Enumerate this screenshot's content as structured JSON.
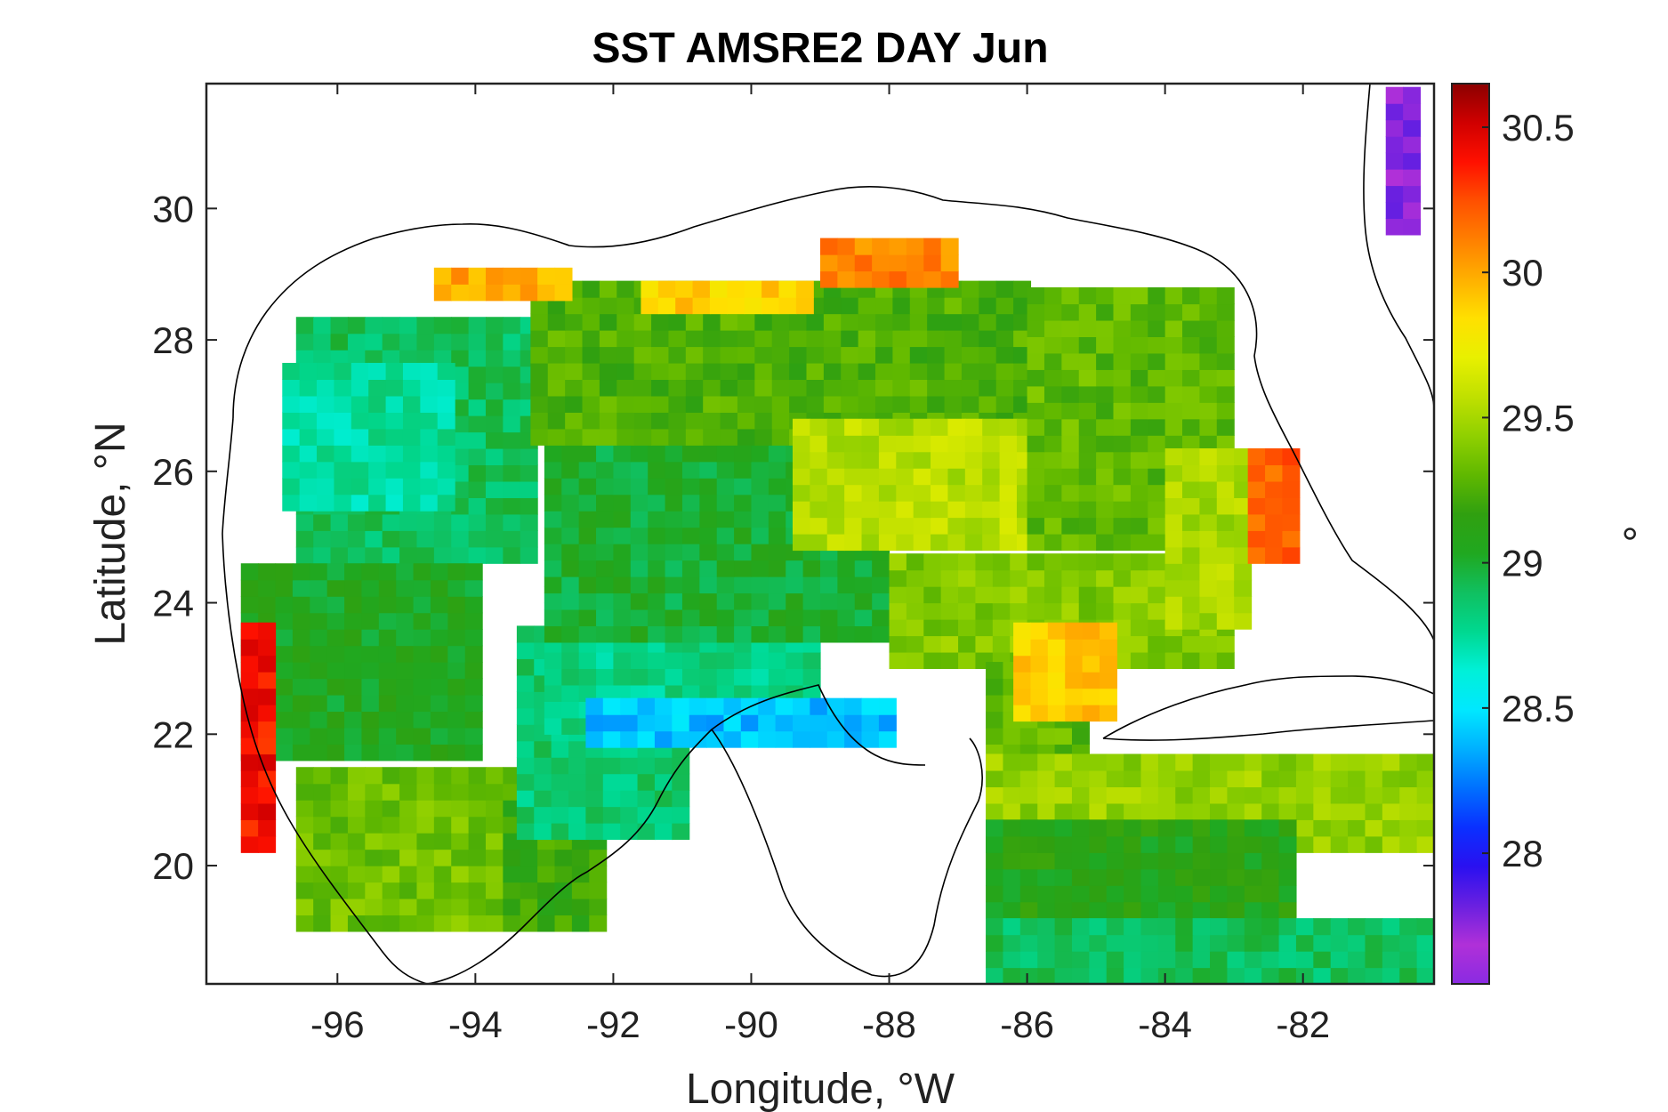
{
  "chart_data": {
    "type": "heatmap",
    "title": "SST AMSRE2 DAY Jun",
    "xlabel": "Longitude, °W",
    "ylabel": "Latitude, °N",
    "colorbar_label": "°",
    "xlim": [
      -97.9,
      -80.1
    ],
    "ylim": [
      18.2,
      31.9
    ],
    "xticks": [
      -96,
      -94,
      -92,
      -90,
      -88,
      -86,
      -84,
      -82
    ],
    "xtick_labels": [
      "-96",
      "-94",
      "-92",
      "-90",
      "-88",
      "-86",
      "-84",
      "-82"
    ],
    "yticks": [
      20,
      22,
      24,
      26,
      28,
      30
    ],
    "ytick_labels": [
      "20",
      "22",
      "24",
      "26",
      "28",
      "30"
    ],
    "clim": [
      27.55,
      30.65
    ],
    "cticks": [
      28,
      28.5,
      29,
      29.5,
      30,
      30.5
    ],
    "ctick_labels": [
      "28",
      "28.5",
      "29",
      "29.5",
      "30",
      "30.5"
    ],
    "colormap": [
      "#8a2be2",
      "#b030d8",
      "#6a20e0",
      "#2a10f0",
      "#0a30ff",
      "#0070ff",
      "#00b0ff",
      "#00e8ff",
      "#00f0d8",
      "#00d890",
      "#10c060",
      "#20a820",
      "#30a010",
      "#60b800",
      "#90d000",
      "#c0e000",
      "#e8f000",
      "#ffe000",
      "#ffb000",
      "#ff8000",
      "#ff5000",
      "#ff1000",
      "#d00000",
      "#8b0000"
    ],
    "grid_resolution_deg": 0.25,
    "sea_surface_temperature_zones": [
      {
        "lon": [
          -96.6,
          -93.0
        ],
        "lat": [
          24.6,
          28.4
        ],
        "value": 28.9
      },
      {
        "lon": [
          -96.8,
          -94.2
        ],
        "lat": [
          25.4,
          27.6
        ],
        "value": 28.75
      },
      {
        "lon": [
          -97.4,
          -94.0
        ],
        "lat": [
          21.6,
          24.6
        ],
        "value": 29.05
      },
      {
        "lon": [
          -96.6,
          -93.6
        ],
        "lat": [
          19.0,
          21.6
        ],
        "value": 29.35
      },
      {
        "lon": [
          -93.6,
          -92.0
        ],
        "lat": [
          19.0,
          21.4
        ],
        "value": 29.2
      },
      {
        "lon": [
          -93.4,
          -91.0
        ],
        "lat": [
          20.4,
          23.6
        ],
        "value": 28.85
      },
      {
        "lon": [
          -93.0,
          -89.0
        ],
        "lat": [
          22.0,
          24.6
        ],
        "value": 28.8
      },
      {
        "lon": [
          -92.4,
          -88.0
        ],
        "lat": [
          21.8,
          22.6
        ],
        "value": 28.4
      },
      {
        "lon": [
          -93.0,
          -88.0
        ],
        "lat": [
          23.4,
          26.4
        ],
        "value": 29.0
      },
      {
        "lon": [
          -93.2,
          -86.0
        ],
        "lat": [
          26.4,
          29.0
        ],
        "value": 29.25
      },
      {
        "lon": [
          -89.4,
          -85.8
        ],
        "lat": [
          24.8,
          26.8
        ],
        "value": 29.55
      },
      {
        "lon": [
          -88.0,
          -83.0
        ],
        "lat": [
          23.0,
          24.8
        ],
        "value": 29.4
      },
      {
        "lon": [
          -86.0,
          -83.0
        ],
        "lat": [
          24.8,
          28.8
        ],
        "value": 29.3
      },
      {
        "lon": [
          -84.0,
          -82.8
        ],
        "lat": [
          23.6,
          26.4
        ],
        "value": 29.5
      },
      {
        "lon": [
          -86.6,
          -85.0
        ],
        "lat": [
          21.6,
          23.2
        ],
        "value": 29.3
      },
      {
        "lon": [
          -86.6,
          -80.2
        ],
        "lat": [
          20.2,
          21.6
        ],
        "value": 29.45
      },
      {
        "lon": [
          -86.6,
          -82.0
        ],
        "lat": [
          19.2,
          20.6
        ],
        "value": 29.1
      },
      {
        "lon": [
          -86.6,
          -80.2
        ],
        "lat": [
          18.2,
          19.2
        ],
        "value": 28.9
      },
      {
        "lon": [
          -97.4,
          -96.8
        ],
        "lat": [
          20.2,
          23.6
        ],
        "value": 30.4
      },
      {
        "lon": [
          -94.6,
          -92.6
        ],
        "lat": [
          28.6,
          29.2
        ],
        "value": 30.0
      },
      {
        "lon": [
          -91.6,
          -89.0
        ],
        "lat": [
          28.4,
          28.8
        ],
        "value": 29.9
      },
      {
        "lon": [
          -89.0,
          -87.0
        ],
        "lat": [
          28.8,
          29.6
        ],
        "value": 30.1
      },
      {
        "lon": [
          -82.8,
          -82.0
        ],
        "lat": [
          24.6,
          26.4
        ],
        "value": 30.2
      },
      {
        "lon": [
          -86.2,
          -84.6
        ],
        "lat": [
          22.2,
          23.6
        ],
        "value": 29.9
      },
      {
        "lon": [
          -80.8,
          -80.2
        ],
        "lat": [
          29.6,
          31.8
        ],
        "value": 27.75
      }
    ]
  }
}
